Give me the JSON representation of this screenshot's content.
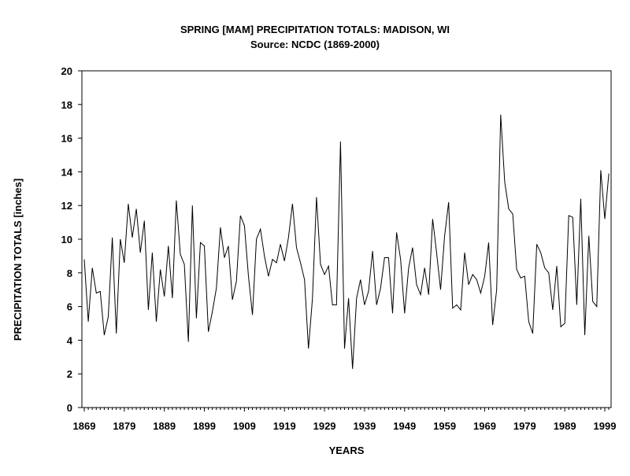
{
  "chart_data": {
    "type": "line",
    "title": "SPRING [MAM] PRECIPITATION TOTALS: MADISON, WI",
    "subtitle": "Source: NCDC (1869-2000)",
    "xlabel": "YEARS",
    "ylabel": "PRECIPITATION TOTALS [inches]",
    "xlim": [
      1869,
      2000
    ],
    "ylim": [
      0,
      20
    ],
    "x_ticks": [
      "1869",
      "1879",
      "1889",
      "1899",
      "1909",
      "1919",
      "1929",
      "1939",
      "1949",
      "1959",
      "1969",
      "1979",
      "1989",
      "1999"
    ],
    "y_ticks": [
      "0",
      "2",
      "4",
      "6",
      "8",
      "10",
      "12",
      "14",
      "16",
      "18",
      "20"
    ],
    "grid": false,
    "line_color": "#000000",
    "x_start": 1869,
    "values": [
      8.8,
      5.1,
      8.3,
      6.8,
      6.9,
      4.3,
      5.4,
      10.1,
      4.4,
      10.0,
      8.6,
      12.1,
      10.1,
      11.8,
      9.2,
      11.1,
      5.8,
      9.2,
      5.1,
      8.2,
      6.6,
      9.6,
      6.5,
      12.3,
      9.1,
      8.5,
      3.9,
      12.0,
      5.3,
      9.8,
      9.6,
      4.5,
      5.7,
      7.1,
      10.7,
      8.9,
      9.6,
      6.4,
      7.5,
      11.4,
      10.8,
      7.8,
      5.5,
      10.0,
      10.6,
      9.0,
      7.8,
      8.8,
      8.6,
      9.7,
      8.7,
      10.1,
      12.1,
      9.5,
      8.6,
      7.6,
      3.5,
      6.5,
      12.5,
      8.5,
      7.9,
      8.4,
      6.1,
      6.1,
      15.8,
      3.5,
      6.5,
      2.3,
      6.5,
      7.6,
      6.1,
      6.9,
      9.3,
      6.1,
      7.1,
      8.9,
      8.9,
      5.6,
      10.4,
      8.8,
      5.6,
      8.3,
      9.5,
      7.3,
      6.7,
      8.3,
      6.7,
      11.2,
      9.2,
      7.0,
      10.2,
      12.2,
      5.9,
      6.1,
      5.8,
      9.2,
      7.3,
      7.9,
      7.6,
      6.8,
      7.8,
      9.8,
      4.9,
      7.0,
      17.4,
      13.4,
      11.8,
      11.5,
      8.2,
      7.7,
      7.8,
      5.1,
      4.4,
      9.7,
      9.2,
      8.3,
      8.0,
      5.8,
      8.4,
      4.8,
      5.0,
      11.4,
      11.3,
      6.1,
      12.4,
      4.3,
      10.2,
      6.3,
      6.0,
      14.1,
      11.2,
      13.9
    ]
  }
}
